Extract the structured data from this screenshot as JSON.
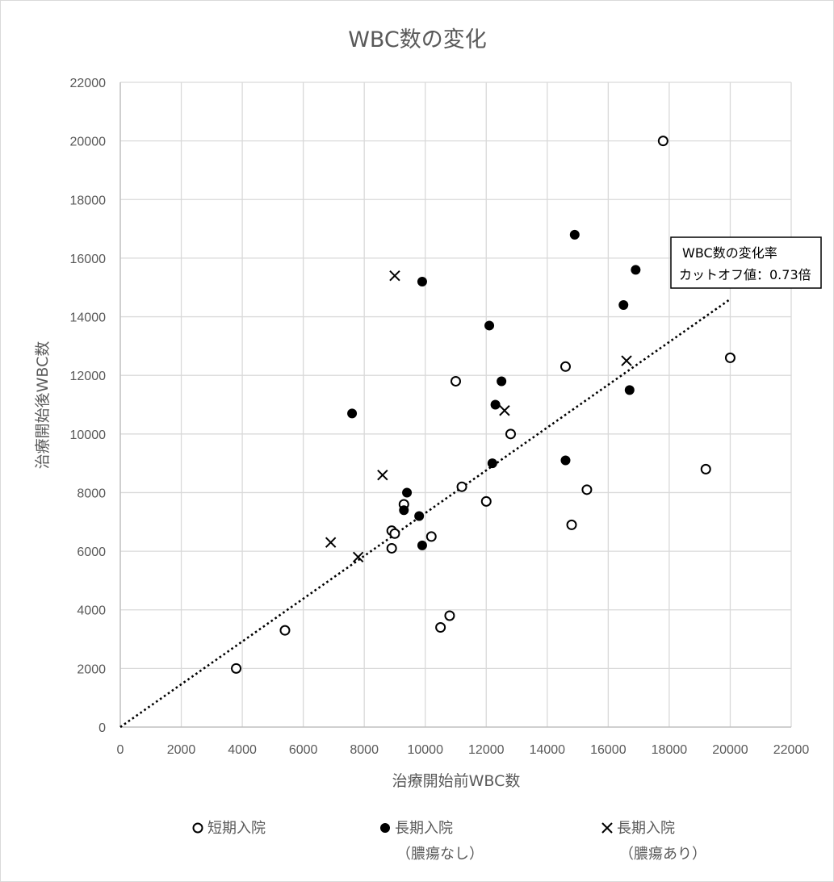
{
  "chart_data": {
    "type": "scatter",
    "title": "WBC数の変化",
    "xlabel": "治療開始前WBC数",
    "ylabel": "治療開始後WBC数",
    "xlim": [
      0,
      22000
    ],
    "ylim": [
      0,
      22000
    ],
    "xticks": [
      "0",
      "2000",
      "4000",
      "6000",
      "8000",
      "10000",
      "12000",
      "14000",
      "16000",
      "18000",
      "20000",
      "22000"
    ],
    "yticks": [
      "0",
      "2000",
      "4000",
      "6000",
      "8000",
      "10000",
      "12000",
      "14000",
      "16000",
      "18000",
      "20000",
      "22000"
    ],
    "grid": true,
    "legend_position": "bottom",
    "series": [
      {
        "name": "短期入院",
        "name_sub": "",
        "marker": "open-circle",
        "points": [
          [
            3800,
            2000
          ],
          [
            5400,
            3300
          ],
          [
            8900,
            6700
          ],
          [
            9000,
            6600
          ],
          [
            8900,
            6100
          ],
          [
            9300,
            7600
          ],
          [
            10200,
            6500
          ],
          [
            10500,
            3400
          ],
          [
            10800,
            3800
          ],
          [
            11000,
            11800
          ],
          [
            11200,
            8200
          ],
          [
            12000,
            7700
          ],
          [
            12800,
            10000
          ],
          [
            14600,
            12300
          ],
          [
            14800,
            6900
          ],
          [
            15300,
            8100
          ],
          [
            17800,
            20000
          ],
          [
            19200,
            8800
          ],
          [
            20000,
            12600
          ]
        ]
      },
      {
        "name": "長期入院",
        "name_sub": "（膿瘍なし）",
        "marker": "filled-circle",
        "points": [
          [
            7600,
            10700
          ],
          [
            9300,
            7400
          ],
          [
            9400,
            8000
          ],
          [
            9800,
            7200
          ],
          [
            9900,
            6200
          ],
          [
            9900,
            15200
          ],
          [
            12100,
            13700
          ],
          [
            12200,
            9000
          ],
          [
            12300,
            11000
          ],
          [
            12500,
            11800
          ],
          [
            14600,
            9100
          ],
          [
            14900,
            16800
          ],
          [
            16500,
            14400
          ],
          [
            16700,
            11500
          ],
          [
            16900,
            15600
          ]
        ]
      },
      {
        "name": "長期入院",
        "name_sub": "（膿瘍あり）",
        "marker": "x",
        "points": [
          [
            6900,
            6300
          ],
          [
            7800,
            5800
          ],
          [
            8600,
            8600
          ],
          [
            9000,
            15400
          ],
          [
            12600,
            10800
          ],
          [
            16600,
            12500
          ]
        ]
      }
    ],
    "trendline": {
      "slope": 0.73,
      "x_range": [
        0,
        20000
      ],
      "style": "dotted"
    },
    "annotation": {
      "line1": "WBC数の変化率",
      "line2": "カットオフ値：0.73倍"
    }
  }
}
